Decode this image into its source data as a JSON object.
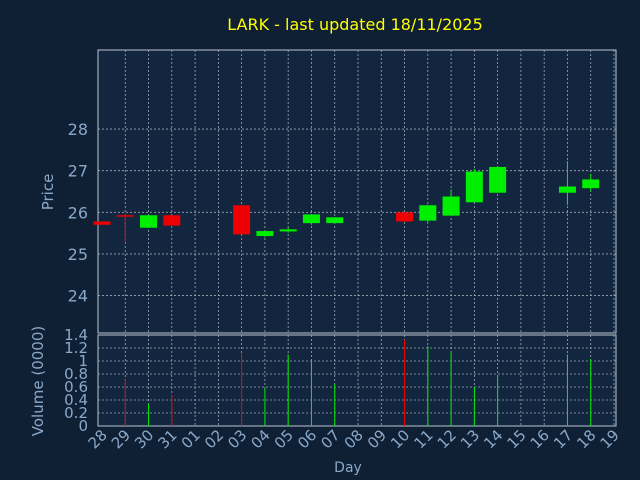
{
  "chart_data": {
    "type": "candlestick",
    "title": "LARK - last updated 18/11/2025",
    "xlabel": "Day",
    "price_panel": {
      "ylabel": "Price",
      "ylim": [
        23.1,
        29.9
      ],
      "yticks": [
        24,
        25,
        26,
        27,
        28
      ]
    },
    "volume_panel": {
      "ylabel": "Volume (0000)",
      "ylim": [
        0,
        1.4
      ],
      "yticks": [
        0,
        0.2,
        0.4,
        0.6,
        0.8,
        1,
        1.2,
        1.4
      ]
    },
    "categories": [
      "28",
      "29",
      "30",
      "31",
      "01",
      "02",
      "03",
      "04",
      "05",
      "06",
      "07",
      "08",
      "09",
      "10",
      "11",
      "12",
      "13",
      "14",
      "15",
      "16",
      "17",
      "18",
      "19"
    ],
    "candles": [
      {
        "day": "28",
        "open": 25.78,
        "high": 25.78,
        "low": 25.7,
        "close": 25.7,
        "volume": 0
      },
      {
        "day": "29",
        "open": 25.93,
        "high": 25.97,
        "low": 25.28,
        "close": 25.91,
        "volume": 0.74
      },
      {
        "day": "30",
        "open": 25.63,
        "high": 25.93,
        "low": 25.63,
        "close": 25.93,
        "volume": 0.34
      },
      {
        "day": "31",
        "open": 25.93,
        "high": 25.93,
        "low": 25.68,
        "close": 25.68,
        "volume": 0.48
      },
      {
        "day": "01",
        "open": null,
        "high": null,
        "low": null,
        "close": null,
        "volume": 0
      },
      {
        "day": "02",
        "open": null,
        "high": null,
        "low": null,
        "close": null,
        "volume": 0
      },
      {
        "day": "03",
        "open": 26.17,
        "high": 26.17,
        "low": 25.47,
        "close": 25.47,
        "volume": 1.12
      },
      {
        "day": "04",
        "open": 25.43,
        "high": 25.55,
        "low": 25.4,
        "close": 25.55,
        "volume": 0.59
      },
      {
        "day": "05",
        "open": 25.54,
        "high": 25.64,
        "low": 25.51,
        "close": 25.59,
        "volume": 1.1
      },
      {
        "day": "06",
        "open": 25.74,
        "high": 25.96,
        "low": 25.7,
        "close": 25.95,
        "volume": 1.0
      },
      {
        "day": "07",
        "open": 25.74,
        "high": 25.88,
        "low": 25.74,
        "close": 25.88,
        "volume": 0.64
      },
      {
        "day": "08",
        "open": null,
        "high": null,
        "low": null,
        "close": null,
        "volume": 0
      },
      {
        "day": "09",
        "open": null,
        "high": null,
        "low": null,
        "close": null,
        "volume": 0
      },
      {
        "day": "10",
        "open": 26.0,
        "high": 26.0,
        "low": 25.78,
        "close": 25.78,
        "volume": 1.33
      },
      {
        "day": "11",
        "open": 25.8,
        "high": 26.18,
        "low": 25.76,
        "close": 26.17,
        "volume": 1.23
      },
      {
        "day": "12",
        "open": 25.92,
        "high": 26.55,
        "low": 25.92,
        "close": 26.38,
        "volume": 1.14
      },
      {
        "day": "13",
        "open": 26.24,
        "high": 27.04,
        "low": 26.24,
        "close": 26.98,
        "volume": 0.6
      },
      {
        "day": "14",
        "open": 26.47,
        "high": 27.11,
        "low": 26.47,
        "close": 27.09,
        "volume": 0.78
      },
      {
        "day": "15",
        "open": null,
        "high": null,
        "low": null,
        "close": null,
        "volume": 0
      },
      {
        "day": "16",
        "open": null,
        "high": null,
        "low": null,
        "close": null,
        "volume": 0
      },
      {
        "day": "17",
        "open": 26.47,
        "high": 27.23,
        "low": 26.18,
        "close": 26.62,
        "volume": 1.1
      },
      {
        "day": "18",
        "open": 26.58,
        "high": 26.92,
        "low": 26.5,
        "close": 26.79,
        "volume": 1.03
      },
      {
        "day": "19",
        "open": null,
        "high": null,
        "low": null,
        "close": null,
        "volume": 0
      }
    ],
    "grid": true,
    "colors": {
      "background": "#0f2035",
      "plot_background": "#13263f",
      "up": "#00ee00",
      "down": "#ee0000",
      "title": "#ffff00",
      "axis_text": "#8aa8c8",
      "grid": "#a0a8b0",
      "frame": "#b8c4d0"
    }
  }
}
